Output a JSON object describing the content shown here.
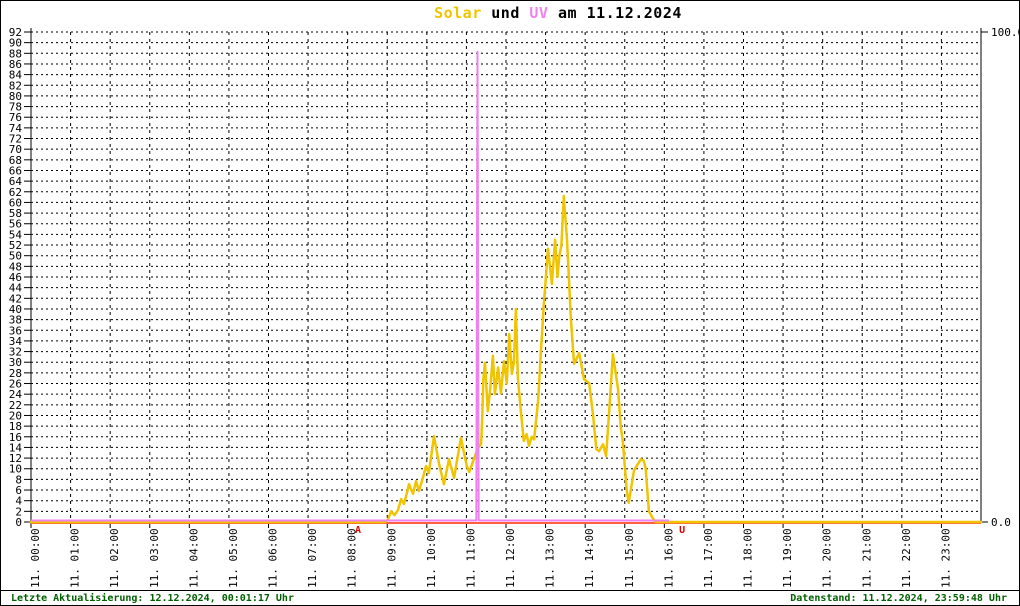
{
  "title": {
    "solar": "Solar",
    "middle": " und ",
    "uv": "UV",
    "rest": " am 11.12.2024"
  },
  "footer": {
    "left": "Letzte Aktualisierung: 12.12.2024, 00:01:17 Uhr",
    "right": "Datenstand: 11.12.2024, 23:59:48 Uhr"
  },
  "chart_data": {
    "type": "line",
    "title": "Solar und UV am 11.12.2024",
    "grid": "dotted, horizontal every 2 units, vertical every hour",
    "x_axis": {
      "start_hour": 0,
      "end_hour": 24,
      "tick_labels": [
        "11. 00:00",
        "11. 01:00",
        "11. 02:00",
        "11. 03:00",
        "11. 04:00",
        "11. 05:00",
        "11. 06:00",
        "11. 07:00",
        "11. 08:00",
        "11. 09:00",
        "11. 10:00",
        "11. 11:00",
        "11. 12:00",
        "11. 13:00",
        "11. 14:00",
        "11. 15:00",
        "11. 16:00",
        "11. 17:00",
        "11. 18:00",
        "11. 19:00",
        "11. 20:00",
        "11. 21:00",
        "11. 22:00",
        "11. 23:00"
      ]
    },
    "y_axis_left": {
      "min": 0,
      "max": 92,
      "step": 2,
      "series": "Solar"
    },
    "y_axis_right": {
      "min": 0.0,
      "max": 100.0,
      "labels": [
        "100.0",
        "0.0"
      ],
      "series": "UV"
    },
    "series": [
      {
        "name": "Solar",
        "axis": "left",
        "points": [
          [
            0,
            0
          ],
          [
            8.95,
            0
          ],
          [
            9.02,
            0.5
          ],
          [
            9.1,
            2.0
          ],
          [
            9.18,
            1.3
          ],
          [
            9.27,
            2.2
          ],
          [
            9.35,
            4.3
          ],
          [
            9.42,
            3.4
          ],
          [
            9.5,
            5.5
          ],
          [
            9.55,
            7.1
          ],
          [
            9.65,
            5.3
          ],
          [
            9.73,
            7.7
          ],
          [
            9.8,
            5.8
          ],
          [
            9.9,
            8.3
          ],
          [
            9.98,
            10.5
          ],
          [
            10.05,
            9.2
          ],
          [
            10.18,
            16.1
          ],
          [
            10.31,
            10.9
          ],
          [
            10.43,
            7.1
          ],
          [
            10.56,
            11.8
          ],
          [
            10.69,
            8.3
          ],
          [
            10.86,
            15.8
          ],
          [
            11.01,
            10.5
          ],
          [
            11.07,
            9.4
          ],
          [
            11.19,
            11.8
          ],
          [
            11.29,
            13.9
          ],
          [
            11.37,
            14.6
          ],
          [
            11.4,
            20
          ],
          [
            11.43,
            27
          ],
          [
            11.47,
            29.9
          ],
          [
            11.54,
            20.8
          ],
          [
            11.6,
            25
          ],
          [
            11.67,
            31.2
          ],
          [
            11.72,
            24
          ],
          [
            11.8,
            29
          ],
          [
            11.87,
            24.2
          ],
          [
            11.95,
            30.2
          ],
          [
            12.02,
            26
          ],
          [
            12.08,
            35.3
          ],
          [
            12.15,
            27.8
          ],
          [
            12.2,
            30
          ],
          [
            12.25,
            40
          ],
          [
            12.3,
            27
          ],
          [
            12.38,
            20.5
          ],
          [
            12.45,
            15.2
          ],
          [
            12.52,
            16.5
          ],
          [
            12.58,
            14.3
          ],
          [
            12.65,
            16
          ],
          [
            12.71,
            15.5
          ],
          [
            12.81,
            22.7
          ],
          [
            12.88,
            31.7
          ],
          [
            12.95,
            40.2
          ],
          [
            13.06,
            51.3
          ],
          [
            13.16,
            44.7
          ],
          [
            13.24,
            53
          ],
          [
            13.3,
            46
          ],
          [
            13.35,
            50
          ],
          [
            13.4,
            52
          ],
          [
            13.46,
            61.2
          ],
          [
            13.54,
            53
          ],
          [
            13.59,
            45.8
          ],
          [
            13.64,
            38
          ],
          [
            13.72,
            29.7
          ],
          [
            13.85,
            31.7
          ],
          [
            13.97,
            26.8
          ],
          [
            14.1,
            26.1
          ],
          [
            14.2,
            20
          ],
          [
            14.28,
            13.7
          ],
          [
            14.35,
            13.3
          ],
          [
            14.45,
            14.6
          ],
          [
            14.53,
            12.4
          ],
          [
            14.6,
            20
          ],
          [
            14.7,
            31.5
          ],
          [
            14.83,
            25
          ],
          [
            14.9,
            17.7
          ],
          [
            14.95,
            15.2
          ],
          [
            15.05,
            6
          ],
          [
            15.1,
            3.6
          ],
          [
            15.23,
            9.6
          ],
          [
            15.3,
            10.5
          ],
          [
            15.41,
            11.8
          ],
          [
            15.48,
            11.5
          ],
          [
            15.53,
            10
          ],
          [
            15.61,
            2
          ],
          [
            15.7,
            0.8
          ],
          [
            15.78,
            0
          ],
          [
            24,
            0
          ]
        ]
      },
      {
        "name": "UV",
        "axis": "right",
        "points": [
          [
            0,
            0
          ],
          [
            11.25,
            0
          ],
          [
            11.28,
            95.7
          ],
          [
            11.31,
            0
          ],
          [
            16.12,
            0
          ]
        ]
      }
    ],
    "sun_markers": [
      {
        "label": "A",
        "hour": 8.26
      },
      {
        "label": "U",
        "hour": 16.45
      }
    ],
    "colors": {
      "solar": "#f0c400",
      "uv": "#ee82ee",
      "baseline": "#ff6040",
      "marker": "#e00000",
      "grid": "#000000",
      "footer": "#006000"
    }
  }
}
